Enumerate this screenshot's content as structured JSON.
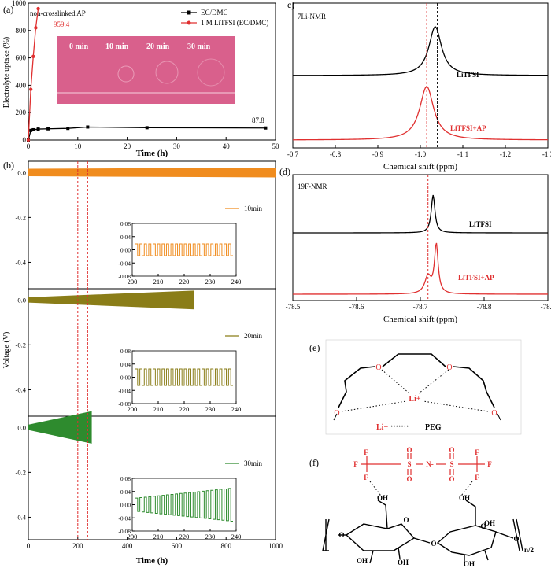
{
  "chart_data": [
    {
      "id": "a",
      "panel_label": "(a)",
      "type": "line",
      "xlabel": "Time (h)",
      "ylabel": "Electrolyte uptake (%)",
      "xlim": [
        0,
        50
      ],
      "ylim": [
        0,
        1000
      ],
      "xticks": [
        0,
        10,
        20,
        30,
        40,
        50
      ],
      "yticks": [
        0,
        200,
        400,
        600,
        800,
        1000
      ],
      "series": [
        {
          "name": "EC/DMC",
          "color": "#000000",
          "x": [
            0,
            0.5,
            1,
            2,
            4,
            8,
            12,
            24,
            48
          ],
          "y": [
            0,
            70,
            75,
            80,
            82,
            85,
            95,
            90,
            87.8
          ]
        },
        {
          "name": "1 M LiTFSI (EC/DMC)",
          "color": "#e03030",
          "x": [
            0,
            0.5,
            1,
            1.5,
            2
          ],
          "y": [
            0,
            370,
            610,
            820,
            959.4
          ]
        }
      ],
      "annotations": [
        "non-crosslinked AP",
        "959.4",
        "87.8"
      ],
      "photo_labels": [
        "0 min",
        "10 min",
        "20 min",
        "30 min"
      ],
      "photo_color": "#d9608c"
    },
    {
      "id": "b",
      "panel_label": "(b)",
      "type": "line",
      "xlabel": "Time (h)",
      "ylabel": "Voltage (V)",
      "xlim": [
        0,
        1000
      ],
      "xticks": [
        0,
        200,
        400,
        600,
        800,
        1000
      ],
      "subplots": [
        {
          "legend": "10min",
          "color": "#f08c1e",
          "ylim": [
            -0.5,
            0.05
          ],
          "yticks": [
            0.0,
            -0.2,
            -0.4
          ],
          "end_time": 1000,
          "amp_start": 0.015,
          "amp_end": 0.02,
          "inset": {
            "xlim": [
              200,
              240
            ],
            "ylim": [
              -0.08,
              0.08
            ],
            "xticks": [
              200,
              210,
              220,
              230,
              240
            ],
            "yticks": [
              -0.08,
              -0.04,
              0.0,
              0.04,
              0.08
            ],
            "amp_start": 0.018,
            "amp_end": 0.018,
            "cycles": 22
          }
        },
        {
          "legend": "20min",
          "color": "#8a7d18",
          "ylim": [
            -0.5,
            0.05
          ],
          "yticks": [
            0.0,
            -0.2,
            -0.4
          ],
          "end_time": 670,
          "amp_start": 0.01,
          "amp_end": 0.04,
          "inset": {
            "xlim": [
              200,
              240
            ],
            "ylim": [
              -0.08,
              0.08
            ],
            "xticks": [
              200,
              210,
              220,
              230,
              240
            ],
            "yticks": [
              -0.08,
              -0.04,
              0.0,
              0.04,
              0.08
            ],
            "amp_start": 0.025,
            "amp_end": 0.025,
            "cycles": 22
          }
        },
        {
          "legend": "30min",
          "color": "#2e8b2e",
          "ylim": [
            -0.5,
            0.05
          ],
          "yticks": [
            0.0,
            -0.2,
            -0.4
          ],
          "end_time": 255,
          "amp_start": 0.01,
          "amp_end": 0.07,
          "inset": {
            "xlim": [
              200,
              240
            ],
            "ylim": [
              -0.08,
              0.08
            ],
            "xticks": [
              200,
              210,
              220,
              230,
              240
            ],
            "yticks": [
              -0.08,
              -0.04,
              0.0,
              0.04,
              0.08
            ],
            "amp_start": 0.02,
            "amp_end": 0.05,
            "cycles": 22
          }
        }
      ],
      "guide_lines_x": [
        200,
        240
      ],
      "guide_color": "#e03030"
    },
    {
      "id": "c",
      "panel_label": "c)",
      "type": "line",
      "title": "7Li-NMR",
      "xlabel": "Chemical shift (ppm)",
      "xlim": [
        -0.7,
        -1.3
      ],
      "xticks": [
        -0.7,
        -0.8,
        -0.9,
        -1.0,
        -1.1,
        -1.2,
        -1.3
      ],
      "series": [
        {
          "name": "LiTFSI",
          "color": "#000000",
          "peak": -1.035,
          "width": 0.018,
          "height": 1.0
        },
        {
          "name": "LiTFSI+AP",
          "color": "#e03030",
          "peak": -1.015,
          "width": 0.02,
          "height": 1.0
        }
      ],
      "guide_lines_x": [
        -1.015,
        -1.04
      ]
    },
    {
      "id": "d",
      "panel_label": "(d)",
      "type": "line",
      "title": "19F-NMR",
      "xlabel": "Chemical shift (ppm)",
      "xlim": [
        -78.5,
        -78.9
      ],
      "xticks": [
        -78.5,
        -78.6,
        -78.7,
        -78.8,
        -78.9
      ],
      "series": [
        {
          "name": "LiTFSI",
          "color": "#000000",
          "peak": -78.72,
          "width": 0.0035,
          "height": 1.0
        },
        {
          "name": "LiTFSI+AP",
          "color": "#e03030",
          "peak": -78.725,
          "width": 0.0035,
          "height": 1.0,
          "shoulder_peak": -78.712,
          "shoulder_height": 0.35,
          "shoulder_width": 0.006
        }
      ],
      "guide_lines_x": [
        -78.712
      ]
    }
  ],
  "panel_e": {
    "label": "(e)",
    "atoms": [
      "O",
      "O",
      "O",
      "O",
      "Li+"
    ],
    "legend_li": "Li+",
    "legend_dots": "·······",
    "legend_peg": "PEG"
  },
  "panel_f": {
    "label": "(f)",
    "tfsi_atoms": [
      "F",
      "F",
      "F",
      "S",
      "O",
      "O",
      "N-",
      "S",
      "O",
      "O",
      "F",
      "F",
      "F"
    ],
    "ring_atoms": [
      "OH",
      "OH",
      "OH",
      "OH",
      "OH",
      "OH",
      "O",
      "O",
      "O",
      "O",
      "O"
    ],
    "repeat_label": "n/2",
    "tfsi_color": "#e03030"
  }
}
